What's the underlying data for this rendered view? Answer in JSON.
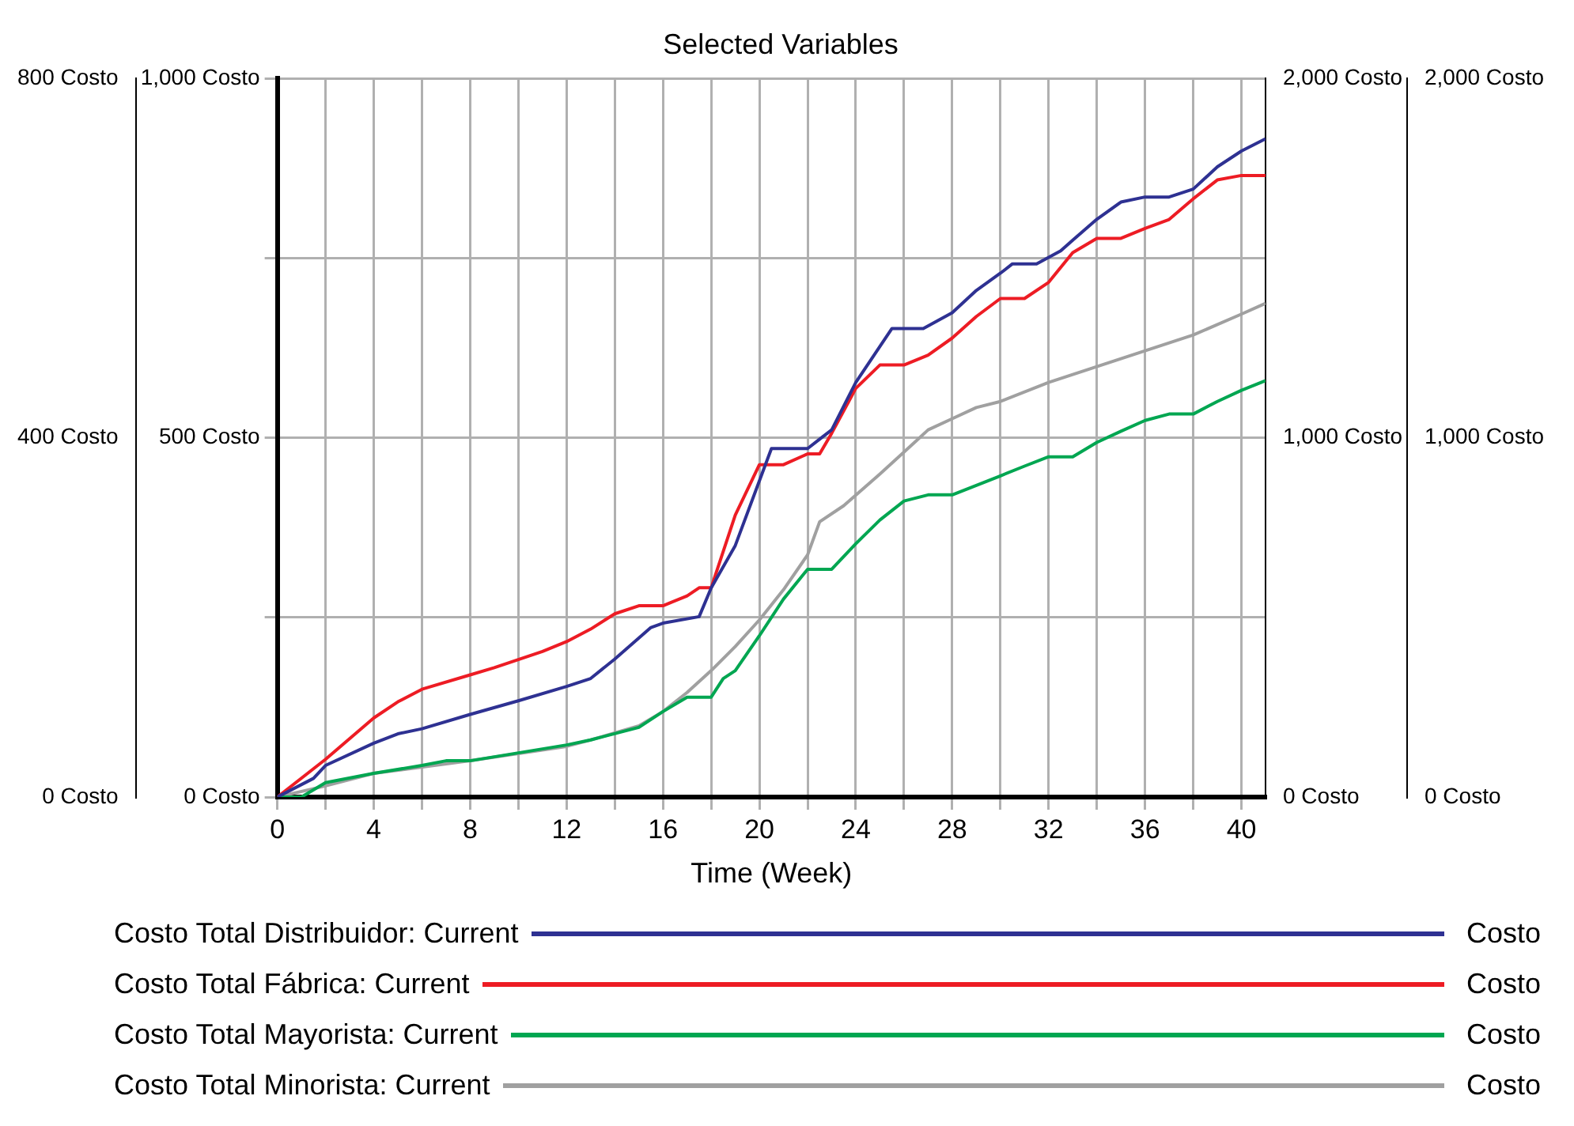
{
  "chart_data": {
    "type": "line",
    "title": "Selected Variables",
    "xlabel": "Time (Week)",
    "xlim": [
      0,
      41
    ],
    "xticks": [
      0,
      {
        "value": 2,
        "label": null
      },
      4,
      {
        "value": 6,
        "label": null
      },
      8,
      {
        "value": 10,
        "label": null
      },
      12,
      {
        "value": 14,
        "label": null
      },
      16,
      {
        "value": 18,
        "label": null
      },
      20,
      {
        "value": 22,
        "label": null
      },
      24,
      {
        "value": 26,
        "label": null
      },
      28,
      {
        "value": 30,
        "label": null
      },
      32,
      {
        "value": 34,
        "label": null
      },
      36,
      {
        "value": 38,
        "label": null
      },
      40
    ],
    "ylim": [
      0,
      1000
    ],
    "yticks": [
      {
        "value": 0,
        "label": "0 Costo"
      },
      {
        "value": 250,
        "label": null
      },
      {
        "value": 500,
        "label": "500 Costo"
      },
      {
        "value": 750,
        "label": null
      },
      {
        "value": 1000,
        "label": "1,000 Costo"
      }
    ],
    "y2lim": [
      0,
      800
    ],
    "y2ticks": [
      {
        "value": 0,
        "label": "0 Costo"
      },
      {
        "value": 400,
        "label": "400 Costo"
      },
      {
        "value": 800,
        "label": "800 Costo"
      }
    ],
    "y3lim": [
      0,
      2000
    ],
    "y3ticks": [
      {
        "value": 0,
        "label": "0 Costo"
      },
      {
        "value": 1000,
        "label": "1,000 Costo"
      },
      {
        "value": 2000,
        "label": "2,000 Costo"
      }
    ],
    "grid": true,
    "legend": "bottom",
    "marker": "none",
    "line_style": "solid",
    "annotations": [
      "Costo",
      "Costo",
      "Costo",
      "Costo"
    ],
    "series": [
      {
        "name": "Costo Total Distribuidor: Current",
        "color": "#2e3192",
        "axis": "y",
        "x": [
          0,
          1.5,
          2,
          4,
          5,
          6,
          8,
          10,
          12,
          13,
          14,
          15.5,
          16,
          17.5,
          18,
          19,
          20.5,
          22,
          22.5,
          23,
          24,
          25.5,
          26.8,
          28,
          29,
          30,
          30.5,
          31.5,
          32.5,
          33,
          34,
          35,
          36,
          37,
          38,
          39,
          40,
          41
        ],
        "values": [
          0,
          26,
          44,
          75,
          88,
          95,
          115,
          134,
          154,
          165,
          192,
          236,
          242,
          251,
          291,
          350,
          485,
          485,
          498,
          511,
          577,
          652,
          652,
          674,
          705,
          729,
          742,
          742,
          760,
          775,
          804,
          828,
          835,
          835,
          846,
          877,
          899,
          916
        ]
      },
      {
        "name": "Costo Total Fábrica: Current",
        "color": "#ed1c24",
        "axis": "y2",
        "x": [
          0,
          2,
          4,
          5,
          6,
          8,
          9,
          11,
          12,
          13,
          14,
          15,
          16,
          17,
          17.5,
          18,
          19,
          20,
          21,
          22,
          22.5,
          23,
          24,
          25,
          26,
          27,
          28,
          29,
          30,
          31,
          32,
          33,
          34,
          35,
          36,
          37,
          38,
          39,
          40,
          41
        ],
        "values": [
          0,
          42,
          88,
          106,
          120,
          136,
          144,
          162,
          173,
          187,
          204,
          213,
          213,
          224,
          233,
          233,
          314,
          370,
          370,
          382,
          382,
          405,
          455,
          481,
          481,
          492,
          511,
          535,
          555,
          555,
          573,
          606,
          622,
          622,
          633,
          643,
          666,
          687,
          692,
          692
        ]
      },
      {
        "name": "Costo Total Mayorista: Current",
        "color": "#00a651",
        "axis": "y3",
        "x": [
          0,
          1,
          2,
          4,
          6,
          7,
          8,
          10,
          12,
          13,
          15,
          16,
          17,
          18,
          18.5,
          19,
          20,
          21,
          22,
          23,
          24,
          25,
          26,
          27,
          28,
          30,
          31,
          32,
          33,
          34,
          35,
          36,
          37,
          38,
          39,
          40,
          41
        ],
        "values": [
          0,
          0,
          40,
          66,
          88,
          101,
          101,
          123,
          145,
          159,
          194,
          238,
          278,
          278,
          330,
          352,
          449,
          551,
          634,
          634,
          705,
          771,
          824,
          841,
          841,
          894,
          921,
          947,
          947,
          987,
          1018,
          1048,
          1066,
          1066,
          1101,
          1132,
          1159
        ]
      },
      {
        "name": "Costo Total Minorista: Current",
        "color": "#a0a0a0",
        "axis": "y3",
        "x": [
          0,
          2,
          4,
          8,
          12,
          13,
          15,
          16,
          17,
          18,
          19,
          20,
          21,
          22,
          22.5,
          23.5,
          25,
          26.5,
          27,
          28,
          29,
          30,
          32,
          34,
          36,
          38,
          40,
          41
        ],
        "values": [
          0,
          31,
          66,
          101,
          141,
          159,
          198,
          238,
          291,
          352,
          419,
          493,
          577,
          674,
          766,
          811,
          899,
          991,
          1022,
          1053,
          1084,
          1101,
          1154,
          1198,
          1242,
          1286,
          1344,
          1374
        ]
      }
    ]
  }
}
